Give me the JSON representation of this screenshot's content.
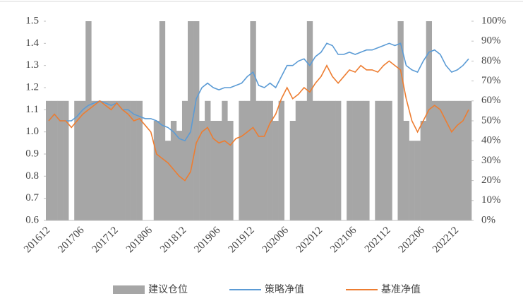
{
  "chart_data": {
    "type": "bar-line",
    "categories": [
      "201612",
      null,
      null,
      null,
      null,
      null,
      "201706",
      null,
      null,
      null,
      null,
      null,
      "201712",
      null,
      null,
      null,
      null,
      null,
      "201806",
      null,
      null,
      null,
      null,
      null,
      "201812",
      null,
      null,
      null,
      null,
      null,
      "201906",
      null,
      null,
      null,
      null,
      null,
      "201912",
      null,
      null,
      null,
      null,
      null,
      "202006",
      null,
      null,
      null,
      null,
      null,
      "202012",
      null,
      null,
      null,
      null,
      null,
      "202106",
      null,
      null,
      null,
      null,
      null,
      "202112",
      null,
      null,
      null,
      null,
      null,
      "202206",
      null,
      null,
      null,
      null,
      null,
      "202212",
      null,
      null
    ],
    "series": [
      {
        "name": "建议仓位",
        "type": "bar",
        "axis": "y2",
        "color": "#a6a6a6",
        "values": [
          60,
          60,
          60,
          60,
          0,
          60,
          60,
          100,
          60,
          60,
          60,
          60,
          60,
          60,
          60,
          60,
          60,
          0,
          0,
          50,
          100,
          40,
          50,
          45,
          60,
          100,
          100,
          50,
          60,
          50,
          50,
          60,
          50,
          0,
          60,
          60,
          100,
          60,
          60,
          60,
          50,
          60,
          0,
          50,
          60,
          60,
          100,
          60,
          60,
          60,
          60,
          60,
          0,
          60,
          60,
          60,
          60,
          0,
          60,
          60,
          60,
          0,
          100,
          50,
          40,
          40,
          50,
          100,
          60,
          60,
          60,
          60,
          60,
          60,
          60
        ]
      },
      {
        "name": "策略净值",
        "type": "line",
        "color": "#5b9bd5",
        "values": [
          1.05,
          1.08,
          1.05,
          1.05,
          1.05,
          1.07,
          1.1,
          1.12,
          1.13,
          1.14,
          1.13,
          1.12,
          1.13,
          1.1,
          1.1,
          1.08,
          1.07,
          1.06,
          1.06,
          1.05,
          1.03,
          1.02,
          1.0,
          0.97,
          0.96,
          1.0,
          1.15,
          1.2,
          1.22,
          1.2,
          1.19,
          1.2,
          1.2,
          1.21,
          1.22,
          1.25,
          1.27,
          1.21,
          1.2,
          1.22,
          1.2,
          1.25,
          1.3,
          1.3,
          1.32,
          1.33,
          1.3,
          1.34,
          1.36,
          1.4,
          1.39,
          1.35,
          1.35,
          1.36,
          1.35,
          1.36,
          1.37,
          1.37,
          1.38,
          1.39,
          1.4,
          1.39,
          1.4,
          1.3,
          1.28,
          1.27,
          1.32,
          1.36,
          1.37,
          1.35,
          1.3,
          1.27,
          1.28,
          1.3,
          1.33
        ]
      },
      {
        "name": "基准净值",
        "type": "line",
        "color": "#ed7d31",
        "values": [
          1.05,
          1.08,
          1.05,
          1.05,
          1.02,
          1.05,
          1.08,
          1.1,
          1.12,
          1.14,
          1.12,
          1.1,
          1.13,
          1.1,
          1.08,
          1.05,
          1.06,
          1.03,
          1.0,
          0.9,
          0.88,
          0.86,
          0.83,
          0.8,
          0.78,
          0.82,
          0.95,
          1.0,
          1.02,
          0.97,
          0.95,
          0.96,
          0.94,
          0.97,
          0.98,
          1.0,
          1.02,
          0.98,
          0.98,
          1.04,
          1.08,
          1.15,
          1.2,
          1.15,
          1.17,
          1.2,
          1.18,
          1.22,
          1.25,
          1.3,
          1.25,
          1.22,
          1.25,
          1.28,
          1.27,
          1.3,
          1.28,
          1.28,
          1.27,
          1.3,
          1.32,
          1.3,
          1.28,
          1.15,
          1.05,
          1.0,
          1.05,
          1.1,
          1.12,
          1.1,
          1.05,
          1.0,
          1.03,
          1.05,
          1.1
        ]
      }
    ],
    "ylim": [
      0.6,
      1.5
    ],
    "yticks": [
      0.6,
      0.7,
      0.8,
      0.9,
      {
        "value": 1,
        "label": "1.0"
      },
      1.1,
      1.2,
      1.3,
      1.4,
      1.5
    ],
    "y2lim": [
      0,
      100
    ],
    "y2ticks": [
      {
        "value": 0,
        "label": "0%"
      },
      {
        "value": 10,
        "label": "10%"
      },
      {
        "value": 20,
        "label": "20%"
      },
      {
        "value": 30,
        "label": "30%"
      },
      {
        "value": 40,
        "label": "40%"
      },
      {
        "value": 50,
        "label": "50%"
      },
      {
        "value": 60,
        "label": "60%"
      },
      {
        "value": 70,
        "label": "70%"
      },
      {
        "value": 80,
        "label": "80%"
      },
      {
        "value": 90,
        "label": "90%"
      },
      {
        "value": 100,
        "label": "100%"
      }
    ],
    "legend": "bottom"
  }
}
